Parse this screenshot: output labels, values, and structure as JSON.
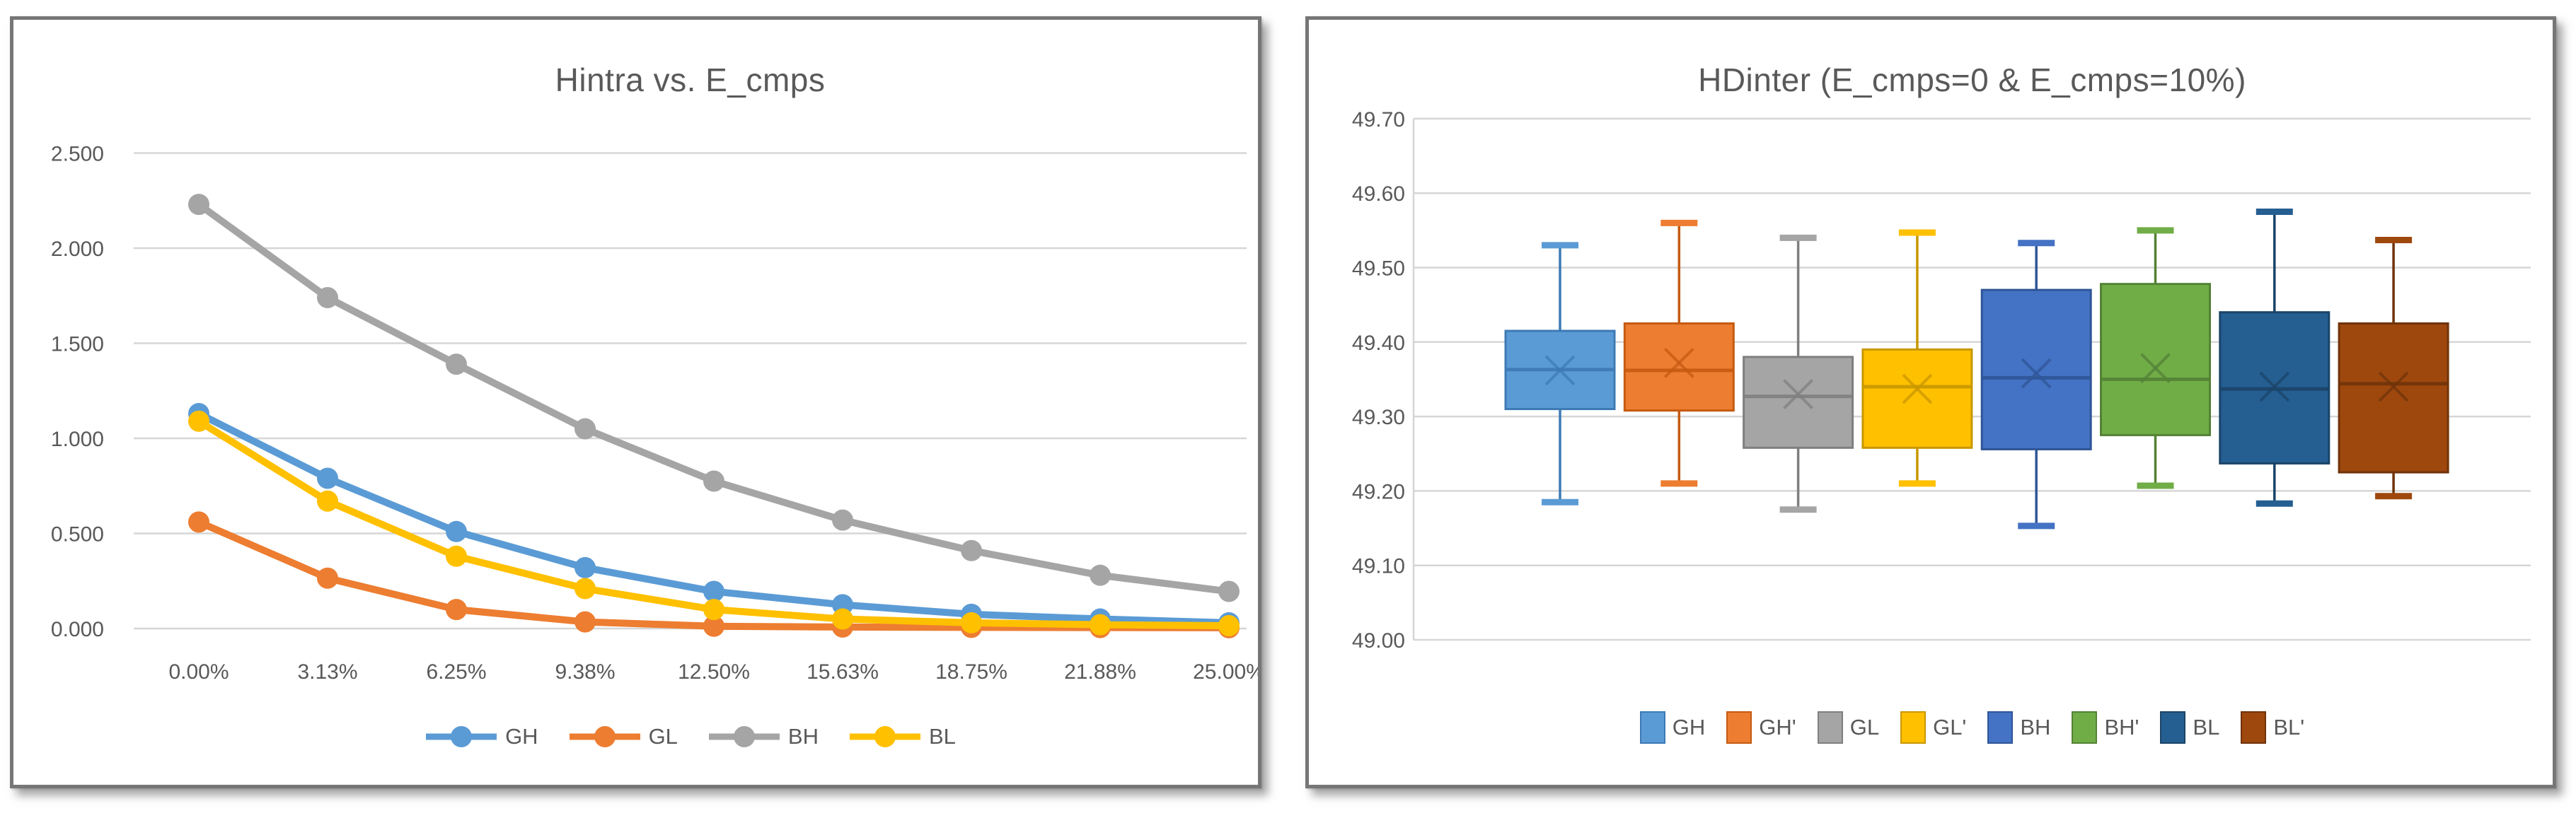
{
  "colors": {
    "panel_border": "#767676",
    "gridline": "#d6d6d6",
    "axis_line": "#d6d6d6",
    "tick_label": "#595959",
    "title": "#595959",
    "legend_label": "#595959",
    "page_background": "#ffffff"
  },
  "chart_data": [
    {
      "type": "line",
      "title": "Hintra vs. E_cmps",
      "xlabel": "",
      "ylabel": "",
      "grid": true,
      "legend_position": "bottom",
      "marker": "circle",
      "ylim": [
        0,
        2.5
      ],
      "yticks": [
        "0.000",
        "0.500",
        "1.000",
        "1.500",
        "2.000",
        "2.500"
      ],
      "categories": [
        "0.00%",
        "3.13%",
        "6.25%",
        "9.38%",
        "12.50%",
        "15.63%",
        "18.75%",
        "21.88%",
        "25.00%"
      ],
      "series": [
        {
          "name": "GH",
          "color": "#5B9BD5",
          "values": [
            1.13,
            0.79,
            0.51,
            0.32,
            0.195,
            0.125,
            0.075,
            0.05,
            0.03
          ]
        },
        {
          "name": "GL",
          "color": "#ED7D31",
          "values": [
            0.56,
            0.265,
            0.1,
            0.035,
            0.012,
            0.008,
            0.006,
            0.005,
            0.004
          ]
        },
        {
          "name": "BH",
          "color": "#A5A5A5",
          "values": [
            2.23,
            1.74,
            1.39,
            1.05,
            0.775,
            0.57,
            0.41,
            0.28,
            0.195
          ]
        },
        {
          "name": "BL",
          "color": "#FFC000",
          "values": [
            1.09,
            0.67,
            0.38,
            0.21,
            0.1,
            0.05,
            0.03,
            0.02,
            0.015
          ]
        }
      ]
    },
    {
      "type": "boxplot",
      "title": "HDinter (E_cmps=0 & E_cmps=10%)",
      "xlabel": "",
      "ylabel": "",
      "grid": true,
      "legend_position": "bottom",
      "ylim": [
        49.0,
        49.7
      ],
      "yticks": [
        "49.00",
        "49.10",
        "49.20",
        "49.30",
        "49.40",
        "49.50",
        "49.60",
        "49.70"
      ],
      "boxes": [
        {
          "name": "GH",
          "color": "#5B9BD5",
          "edge": "#3D7AB5",
          "whisker_low": 49.185,
          "q1": 49.31,
          "median": 49.363,
          "mean": 49.362,
          "q3": 49.415,
          "whisker_high": 49.53
        },
        {
          "name": "GH'",
          "color": "#ED7D31",
          "edge": "#C55A11",
          "whisker_low": 49.21,
          "q1": 49.308,
          "median": 49.362,
          "mean": 49.372,
          "q3": 49.425,
          "whisker_high": 49.56
        },
        {
          "name": "GL",
          "color": "#A5A5A5",
          "edge": "#7F7F7F",
          "whisker_low": 49.175,
          "q1": 49.258,
          "median": 49.327,
          "mean": 49.33,
          "q3": 49.38,
          "whisker_high": 49.54
        },
        {
          "name": "GL'",
          "color": "#FFC000",
          "edge": "#C99700",
          "whisker_low": 49.21,
          "q1": 49.258,
          "median": 49.34,
          "mean": 49.337,
          "q3": 49.39,
          "whisker_high": 49.547
        },
        {
          "name": "BH",
          "color": "#4472C4",
          "edge": "#2F5597",
          "whisker_low": 49.153,
          "q1": 49.256,
          "median": 49.352,
          "mean": 49.358,
          "q3": 49.47,
          "whisker_high": 49.533
        },
        {
          "name": "BH'",
          "color": "#70AD47",
          "edge": "#548235",
          "whisker_low": 49.207,
          "q1": 49.275,
          "median": 49.35,
          "mean": 49.365,
          "q3": 49.478,
          "whisker_high": 49.55
        },
        {
          "name": "BL",
          "color": "#255E91",
          "edge": "#1B4468",
          "whisker_low": 49.183,
          "q1": 49.237,
          "median": 49.337,
          "mean": 49.34,
          "q3": 49.44,
          "whisker_high": 49.575
        },
        {
          "name": "BL'",
          "color": "#9E480E",
          "edge": "#70330A",
          "whisker_low": 49.193,
          "q1": 49.225,
          "median": 49.344,
          "mean": 49.34,
          "q3": 49.425,
          "whisker_high": 49.537
        }
      ]
    }
  ]
}
